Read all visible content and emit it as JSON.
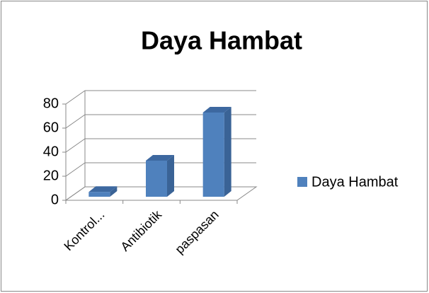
{
  "chart_data": {
    "type": "bar3d",
    "title": "Daya Hambat",
    "categories": [
      "Kontrol...",
      "Antibiotik",
      "paspasan"
    ],
    "series": [
      {
        "name": "Daya Hambat",
        "color": "#4f81bd",
        "values": [
          4,
          30,
          70
        ]
      }
    ],
    "ylim": [
      0,
      80
    ],
    "yticks": [
      0,
      20,
      40,
      60,
      80
    ],
    "grid": true,
    "legend": "right"
  }
}
